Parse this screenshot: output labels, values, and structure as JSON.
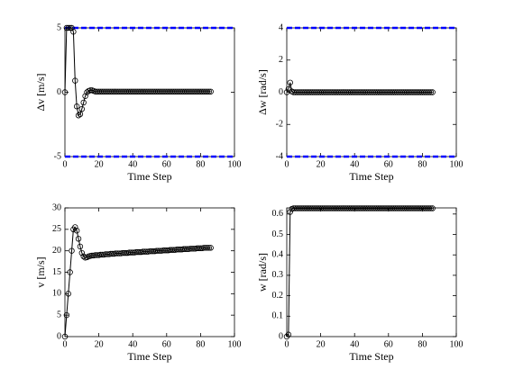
{
  "chart_data": [
    {
      "type": "line",
      "xlabel": "Time Step",
      "ylabel": "Δv [m/s]",
      "xlim": [
        0,
        100
      ],
      "xticks": [
        0,
        20,
        40,
        60,
        80,
        100
      ],
      "ylim": [
        -5,
        5
      ],
      "yticks": [
        -5,
        0,
        5
      ],
      "hlines": [
        5,
        -5
      ],
      "hline_color": "#0000ff",
      "x": [
        0,
        1,
        2,
        3,
        4,
        5,
        6,
        7,
        8,
        9,
        10,
        11,
        12,
        13,
        14,
        15,
        16,
        17,
        18,
        19,
        20,
        21,
        22,
        23,
        24,
        25,
        26,
        27,
        28,
        29,
        30,
        31,
        32,
        33,
        34,
        35,
        36,
        37,
        38,
        39,
        40,
        41,
        42,
        43,
        44,
        45,
        46,
        47,
        48,
        49,
        50,
        51,
        52,
        53,
        54,
        55,
        56,
        57,
        58,
        59,
        60,
        61,
        62,
        63,
        64,
        65,
        66,
        67,
        68,
        69,
        70,
        71,
        72,
        73,
        74,
        75,
        76,
        77,
        78,
        79,
        80,
        81,
        82,
        83,
        84,
        85,
        86
      ],
      "series": [
        {
          "color": "#000000",
          "values": [
            0,
            5,
            5,
            5,
            5,
            4.7,
            0.9,
            -1.1,
            -1.8,
            -1.7,
            -1.3,
            -0.8,
            -0.3,
            0,
            0.1,
            0.15,
            0.15,
            0.1,
            0.05,
            0.05,
            0.05,
            0.05,
            0.05,
            0.05,
            0.05,
            0.05,
            0.05,
            0.05,
            0.05,
            0.05,
            0.05,
            0.05,
            0.05,
            0.05,
            0.05,
            0.05,
            0.05,
            0.05,
            0.05,
            0.05,
            0.05,
            0.05,
            0.05,
            0.05,
            0.05,
            0.05,
            0.05,
            0.05,
            0.05,
            0.05,
            0.05,
            0.05,
            0.05,
            0.05,
            0.05,
            0.05,
            0.05,
            0.05,
            0.05,
            0.05,
            0.05,
            0.05,
            0.05,
            0.05,
            0.05,
            0.05,
            0.05,
            0.05,
            0.05,
            0.05,
            0.05,
            0.05,
            0.05,
            0.05,
            0.05,
            0.05,
            0.05,
            0.05,
            0.05,
            0.05,
            0.05,
            0.05,
            0.05,
            0.05,
            0.05,
            0.05,
            0.05
          ]
        }
      ]
    },
    {
      "type": "line",
      "xlabel": "Time Step",
      "ylabel": "Δw [rad/s]",
      "xlim": [
        0,
        100
      ],
      "xticks": [
        0,
        20,
        40,
        60,
        80,
        100
      ],
      "ylim": [
        -4,
        4
      ],
      "yticks": [
        -4,
        -2,
        0,
        2,
        4
      ],
      "hlines": [
        4,
        -4
      ],
      "hline_color": "#0000ff",
      "x": [
        0,
        1,
        2,
        3,
        4,
        5,
        6,
        7,
        8,
        9,
        10,
        11,
        12,
        13,
        14,
        15,
        16,
        17,
        18,
        19,
        20,
        21,
        22,
        23,
        24,
        25,
        26,
        27,
        28,
        29,
        30,
        31,
        32,
        33,
        34,
        35,
        36,
        37,
        38,
        39,
        40,
        41,
        42,
        43,
        44,
        45,
        46,
        47,
        48,
        49,
        50,
        51,
        52,
        53,
        54,
        55,
        56,
        57,
        58,
        59,
        60,
        61,
        62,
        63,
        64,
        65,
        66,
        67,
        68,
        69,
        70,
        71,
        72,
        73,
        74,
        75,
        76,
        77,
        78,
        79,
        80,
        81,
        82,
        83,
        84,
        85,
        86
      ],
      "series": [
        {
          "color": "#000000",
          "values": [
            0,
            0.2,
            0.6,
            0.05,
            0,
            0,
            0,
            0,
            0,
            0,
            0,
            0,
            0,
            0,
            0,
            0,
            0,
            0,
            0,
            0,
            0,
            0,
            0,
            0,
            0,
            0,
            0,
            0,
            0,
            0,
            0,
            0,
            0,
            0,
            0,
            0,
            0,
            0,
            0,
            0,
            0,
            0,
            0,
            0,
            0,
            0,
            0,
            0,
            0,
            0,
            0,
            0,
            0,
            0,
            0,
            0,
            0,
            0,
            0,
            0,
            0,
            0,
            0,
            0,
            0,
            0,
            0,
            0,
            0,
            0,
            0,
            0,
            0,
            0,
            0,
            0,
            0,
            0,
            0,
            0,
            0,
            0,
            0,
            0,
            0,
            0,
            0
          ]
        }
      ]
    },
    {
      "type": "line",
      "xlabel": "Time Step",
      "ylabel": "v [m/s]",
      "xlim": [
        0,
        100
      ],
      "xticks": [
        0,
        20,
        40,
        60,
        80,
        100
      ],
      "ylim": [
        0,
        30
      ],
      "yticks": [
        0,
        5,
        10,
        15,
        20,
        25,
        30
      ],
      "x": [
        0,
        1,
        2,
        3,
        4,
        5,
        6,
        7,
        8,
        9,
        10,
        11,
        12,
        13,
        14,
        15,
        16,
        17,
        18,
        19,
        20,
        21,
        22,
        23,
        24,
        25,
        26,
        27,
        28,
        29,
        30,
        31,
        32,
        33,
        34,
        35,
        36,
        37,
        38,
        39,
        40,
        41,
        42,
        43,
        44,
        45,
        46,
        47,
        48,
        49,
        50,
        51,
        52,
        53,
        54,
        55,
        56,
        57,
        58,
        59,
        60,
        61,
        62,
        63,
        64,
        65,
        66,
        67,
        68,
        69,
        70,
        71,
        72,
        73,
        74,
        75,
        76,
        77,
        78,
        79,
        80,
        81,
        82,
        83,
        84,
        85,
        86
      ],
      "series": [
        {
          "color": "#000000",
          "values": [
            0,
            5,
            10,
            15,
            20,
            25,
            25.5,
            24.7,
            22.8,
            21,
            19.5,
            18.7,
            18.4,
            18.5,
            18.7,
            18.8,
            18.9,
            18.9,
            19.0,
            19.0,
            19.0,
            19.1,
            19.1,
            19.1,
            19.2,
            19.2,
            19.2,
            19.3,
            19.3,
            19.3,
            19.4,
            19.4,
            19.4,
            19.4,
            19.5,
            19.5,
            19.5,
            19.5,
            19.6,
            19.6,
            19.6,
            19.6,
            19.7,
            19.7,
            19.7,
            19.7,
            19.8,
            19.8,
            19.8,
            19.8,
            19.9,
            19.9,
            19.9,
            19.9,
            20.0,
            20.0,
            20.0,
            20.0,
            20.1,
            20.1,
            20.1,
            20.1,
            20.2,
            20.2,
            20.2,
            20.2,
            20.3,
            20.3,
            20.3,
            20.3,
            20.4,
            20.4,
            20.4,
            20.4,
            20.5,
            20.5,
            20.5,
            20.5,
            20.6,
            20.6,
            20.6,
            20.6,
            20.7,
            20.7,
            20.7,
            20.7,
            20.7
          ]
        }
      ]
    },
    {
      "type": "line",
      "xlabel": "Time Step",
      "ylabel": "w [rad/s]",
      "xlim": [
        0,
        100
      ],
      "xticks": [
        0,
        20,
        40,
        60,
        80,
        100
      ],
      "ylim": [
        0,
        0.63
      ],
      "yticks": [
        0,
        0.1,
        0.2,
        0.3,
        0.4,
        0.5,
        0.6
      ],
      "x": [
        0,
        1,
        2,
        3,
        4,
        5,
        6,
        7,
        8,
        9,
        10,
        11,
        12,
        13,
        14,
        15,
        16,
        17,
        18,
        19,
        20,
        21,
        22,
        23,
        24,
        25,
        26,
        27,
        28,
        29,
        30,
        31,
        32,
        33,
        34,
        35,
        36,
        37,
        38,
        39,
        40,
        41,
        42,
        43,
        44,
        45,
        46,
        47,
        48,
        49,
        50,
        51,
        52,
        53,
        54,
        55,
        56,
        57,
        58,
        59,
        60,
        61,
        62,
        63,
        64,
        65,
        66,
        67,
        68,
        69,
        70,
        71,
        72,
        73,
        74,
        75,
        76,
        77,
        78,
        79,
        80,
        81,
        82,
        83,
        84,
        85,
        86
      ],
      "series": [
        {
          "color": "#000000",
          "values": [
            0,
            0.01,
            0.61,
            0.625,
            0.628,
            0.628,
            0.628,
            0.628,
            0.628,
            0.628,
            0.628,
            0.628,
            0.628,
            0.628,
            0.628,
            0.628,
            0.628,
            0.628,
            0.628,
            0.628,
            0.628,
            0.628,
            0.628,
            0.628,
            0.628,
            0.628,
            0.628,
            0.628,
            0.628,
            0.628,
            0.628,
            0.628,
            0.628,
            0.628,
            0.628,
            0.628,
            0.628,
            0.628,
            0.628,
            0.628,
            0.628,
            0.628,
            0.628,
            0.628,
            0.628,
            0.628,
            0.628,
            0.628,
            0.628,
            0.628,
            0.628,
            0.628,
            0.628,
            0.628,
            0.628,
            0.628,
            0.628,
            0.628,
            0.628,
            0.628,
            0.628,
            0.628,
            0.628,
            0.628,
            0.628,
            0.628,
            0.628,
            0.628,
            0.628,
            0.628,
            0.628,
            0.628,
            0.628,
            0.628,
            0.628,
            0.628,
            0.628,
            0.628,
            0.628,
            0.628,
            0.628,
            0.628,
            0.628,
            0.628,
            0.628,
            0.628,
            0.628
          ]
        }
      ]
    }
  ]
}
